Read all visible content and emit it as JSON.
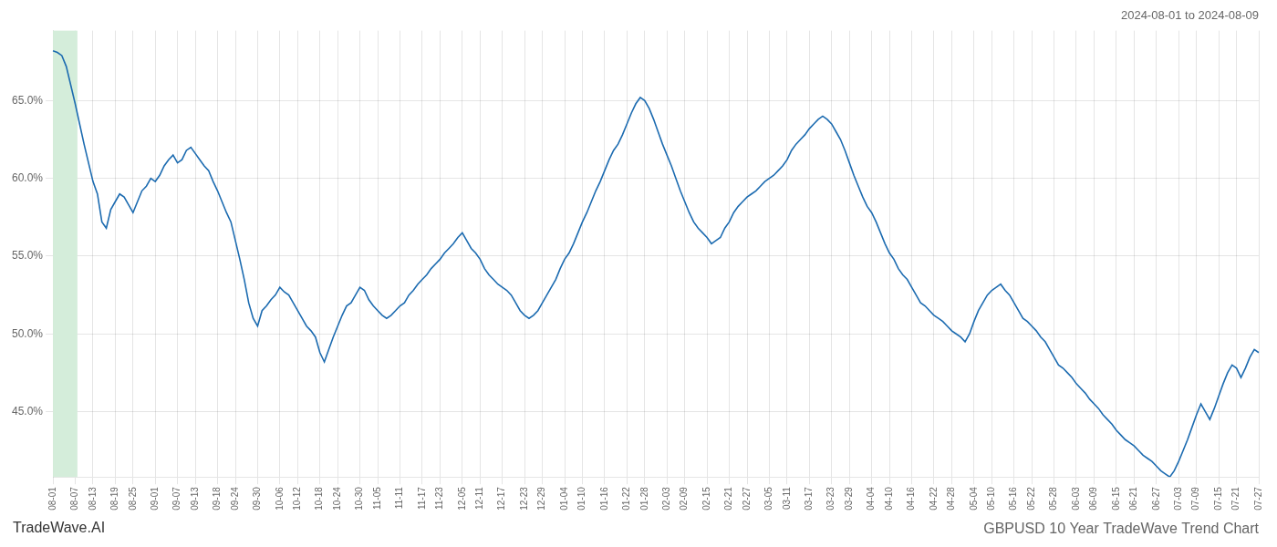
{
  "chart_data": {
    "type": "line",
    "title": "GBPUSD 10 Year TradeWave Trend Chart",
    "subtitle": "2024-08-01 to 2024-08-09",
    "annotations": [
      "TradeWave.AI"
    ],
    "color": "#1c6bb0",
    "marker": "none",
    "grid": true,
    "highlight": {
      "from": "08-01",
      "to": "08-07",
      "color": "#d4edda"
    },
    "ylim": [
      0.408,
      0.695
    ],
    "yticks": [
      {
        "value": 0.45,
        "label": "45.0%"
      },
      {
        "value": 0.5,
        "label": "50.0%"
      },
      {
        "value": 0.55,
        "label": "55.0%"
      },
      {
        "value": 0.6,
        "label": "60.0%"
      },
      {
        "value": 0.65,
        "label": "65.0%"
      }
    ],
    "categories": [
      "08-01",
      null,
      null,
      null,
      null,
      "08-07",
      null,
      null,
      null,
      "08-13",
      null,
      null,
      null,
      null,
      "08-19",
      null,
      null,
      null,
      "08-25",
      null,
      null,
      null,
      null,
      "09-01",
      null,
      null,
      null,
      null,
      "09-07",
      null,
      null,
      null,
      "09-13",
      null,
      null,
      null,
      null,
      "09-18",
      null,
      null,
      null,
      "09-24",
      null,
      null,
      null,
      null,
      "09-30",
      null,
      null,
      null,
      null,
      "10-06",
      null,
      null,
      null,
      "10-12",
      null,
      null,
      null,
      null,
      "10-18",
      null,
      null,
      null,
      "10-24",
      null,
      null,
      null,
      null,
      "10-30",
      null,
      null,
      null,
      "11-05",
      null,
      null,
      null,
      null,
      "11-11",
      null,
      null,
      null,
      null,
      "11-17",
      null,
      null,
      null,
      "11-23",
      null,
      null,
      null,
      null,
      "12-05",
      null,
      null,
      null,
      "12-11",
      null,
      null,
      null,
      null,
      "12-17",
      null,
      null,
      null,
      null,
      "12-23",
      null,
      null,
      null,
      "12-29",
      null,
      null,
      null,
      null,
      "01-04",
      null,
      null,
      null,
      "01-10",
      null,
      null,
      null,
      null,
      "01-16",
      null,
      null,
      null,
      null,
      "01-22",
      null,
      null,
      null,
      "01-28",
      null,
      null,
      null,
      null,
      "02-03",
      null,
      null,
      null,
      "02-09",
      null,
      null,
      null,
      null,
      "02-15",
      null,
      null,
      null,
      null,
      "02-21",
      null,
      null,
      null,
      "02-27",
      null,
      null,
      null,
      null,
      "03-05",
      null,
      null,
      null,
      "03-11",
      null,
      null,
      null,
      null,
      "03-17",
      null,
      null,
      null,
      null,
      "03-23",
      null,
      null,
      null,
      "03-29",
      null,
      null,
      null,
      null,
      "04-04",
      null,
      null,
      null,
      "04-10",
      null,
      null,
      null,
      null,
      "04-16",
      null,
      null,
      null,
      null,
      "04-22",
      null,
      null,
      null,
      "04-28",
      null,
      null,
      null,
      null,
      "05-04",
      null,
      null,
      null,
      "05-10",
      null,
      null,
      null,
      null,
      "05-16",
      null,
      null,
      null,
      "05-22",
      null,
      null,
      null,
      null,
      "05-28",
      null,
      null,
      null,
      null,
      "06-03",
      null,
      null,
      null,
      "06-09",
      null,
      null,
      null,
      null,
      "06-15",
      null,
      null,
      null,
      "06-21",
      null,
      null,
      null,
      null,
      "06-27",
      null,
      null,
      null,
      null,
      "07-03",
      null,
      null,
      null,
      "07-09",
      null,
      null,
      null,
      null,
      "07-15",
      null,
      null,
      null,
      "07-21",
      null,
      null,
      null,
      null,
      "07-27"
    ],
    "values": [
      0.682,
      0.681,
      0.679,
      0.672,
      0.66,
      0.648,
      0.635,
      0.622,
      0.61,
      0.598,
      0.59,
      0.572,
      0.568,
      0.58,
      0.585,
      0.59,
      0.588,
      0.583,
      0.578,
      0.585,
      0.592,
      0.595,
      0.6,
      0.598,
      0.602,
      0.608,
      0.612,
      0.615,
      0.61,
      0.612,
      0.618,
      0.62,
      0.616,
      0.612,
      0.608,
      0.605,
      0.598,
      0.592,
      0.585,
      0.578,
      0.572,
      0.56,
      0.548,
      0.535,
      0.52,
      0.51,
      0.505,
      0.515,
      0.518,
      0.522,
      0.525,
      0.53,
      0.527,
      0.525,
      0.52,
      0.515,
      0.51,
      0.505,
      0.502,
      0.498,
      0.488,
      0.482,
      0.49,
      0.498,
      0.505,
      0.512,
      0.518,
      0.52,
      0.525,
      0.53,
      0.528,
      0.522,
      0.518,
      0.515,
      0.512,
      0.51,
      0.512,
      0.515,
      0.518,
      0.52,
      0.525,
      0.528,
      0.532,
      0.535,
      0.538,
      0.542,
      0.545,
      0.548,
      0.552,
      0.555,
      0.558,
      0.562,
      0.565,
      0.56,
      0.555,
      0.552,
      0.548,
      0.542,
      0.538,
      0.535,
      0.532,
      0.53,
      0.528,
      0.525,
      0.52,
      0.515,
      0.512,
      0.51,
      0.512,
      0.515,
      0.52,
      0.525,
      0.53,
      0.535,
      0.542,
      0.548,
      0.552,
      0.558,
      0.565,
      0.572,
      0.578,
      0.585,
      0.592,
      0.598,
      0.605,
      0.612,
      0.618,
      0.622,
      0.628,
      0.635,
      0.642,
      0.648,
      0.652,
      0.65,
      0.645,
      0.638,
      0.63,
      0.622,
      0.615,
      0.608,
      0.6,
      0.592,
      0.585,
      0.578,
      0.572,
      0.568,
      0.565,
      0.562,
      0.558,
      0.56,
      0.562,
      0.568,
      0.572,
      0.578,
      0.582,
      0.585,
      0.588,
      0.59,
      0.592,
      0.595,
      0.598,
      0.6,
      0.602,
      0.605,
      0.608,
      0.612,
      0.618,
      0.622,
      0.625,
      0.628,
      0.632,
      0.635,
      0.638,
      0.64,
      0.638,
      0.635,
      0.63,
      0.625,
      0.618,
      0.61,
      0.602,
      0.595,
      0.588,
      0.582,
      0.578,
      0.572,
      0.565,
      0.558,
      0.552,
      0.548,
      0.542,
      0.538,
      0.535,
      0.53,
      0.525,
      0.52,
      0.518,
      0.515,
      0.512,
      0.51,
      0.508,
      0.505,
      0.502,
      0.5,
      0.498,
      0.495,
      0.5,
      0.508,
      0.515,
      0.52,
      0.525,
      0.528,
      0.53,
      0.532,
      0.528,
      0.525,
      0.52,
      0.515,
      0.51,
      0.508,
      0.505,
      0.502,
      0.498,
      0.495,
      0.49,
      0.485,
      0.48,
      0.478,
      0.475,
      0.472,
      0.468,
      0.465,
      0.462,
      0.458,
      0.455,
      0.452,
      0.448,
      0.445,
      0.442,
      0.438,
      0.435,
      0.432,
      0.43,
      0.428,
      0.425,
      0.422,
      0.42,
      0.418,
      0.415,
      0.412,
      0.41,
      0.408,
      0.412,
      0.418,
      0.425,
      0.432,
      0.44,
      0.448,
      0.455,
      0.45,
      0.445,
      0.452,
      0.46,
      0.468,
      0.475,
      0.48,
      0.478,
      0.472,
      0.478,
      0.485,
      0.49,
      0.488
    ]
  }
}
